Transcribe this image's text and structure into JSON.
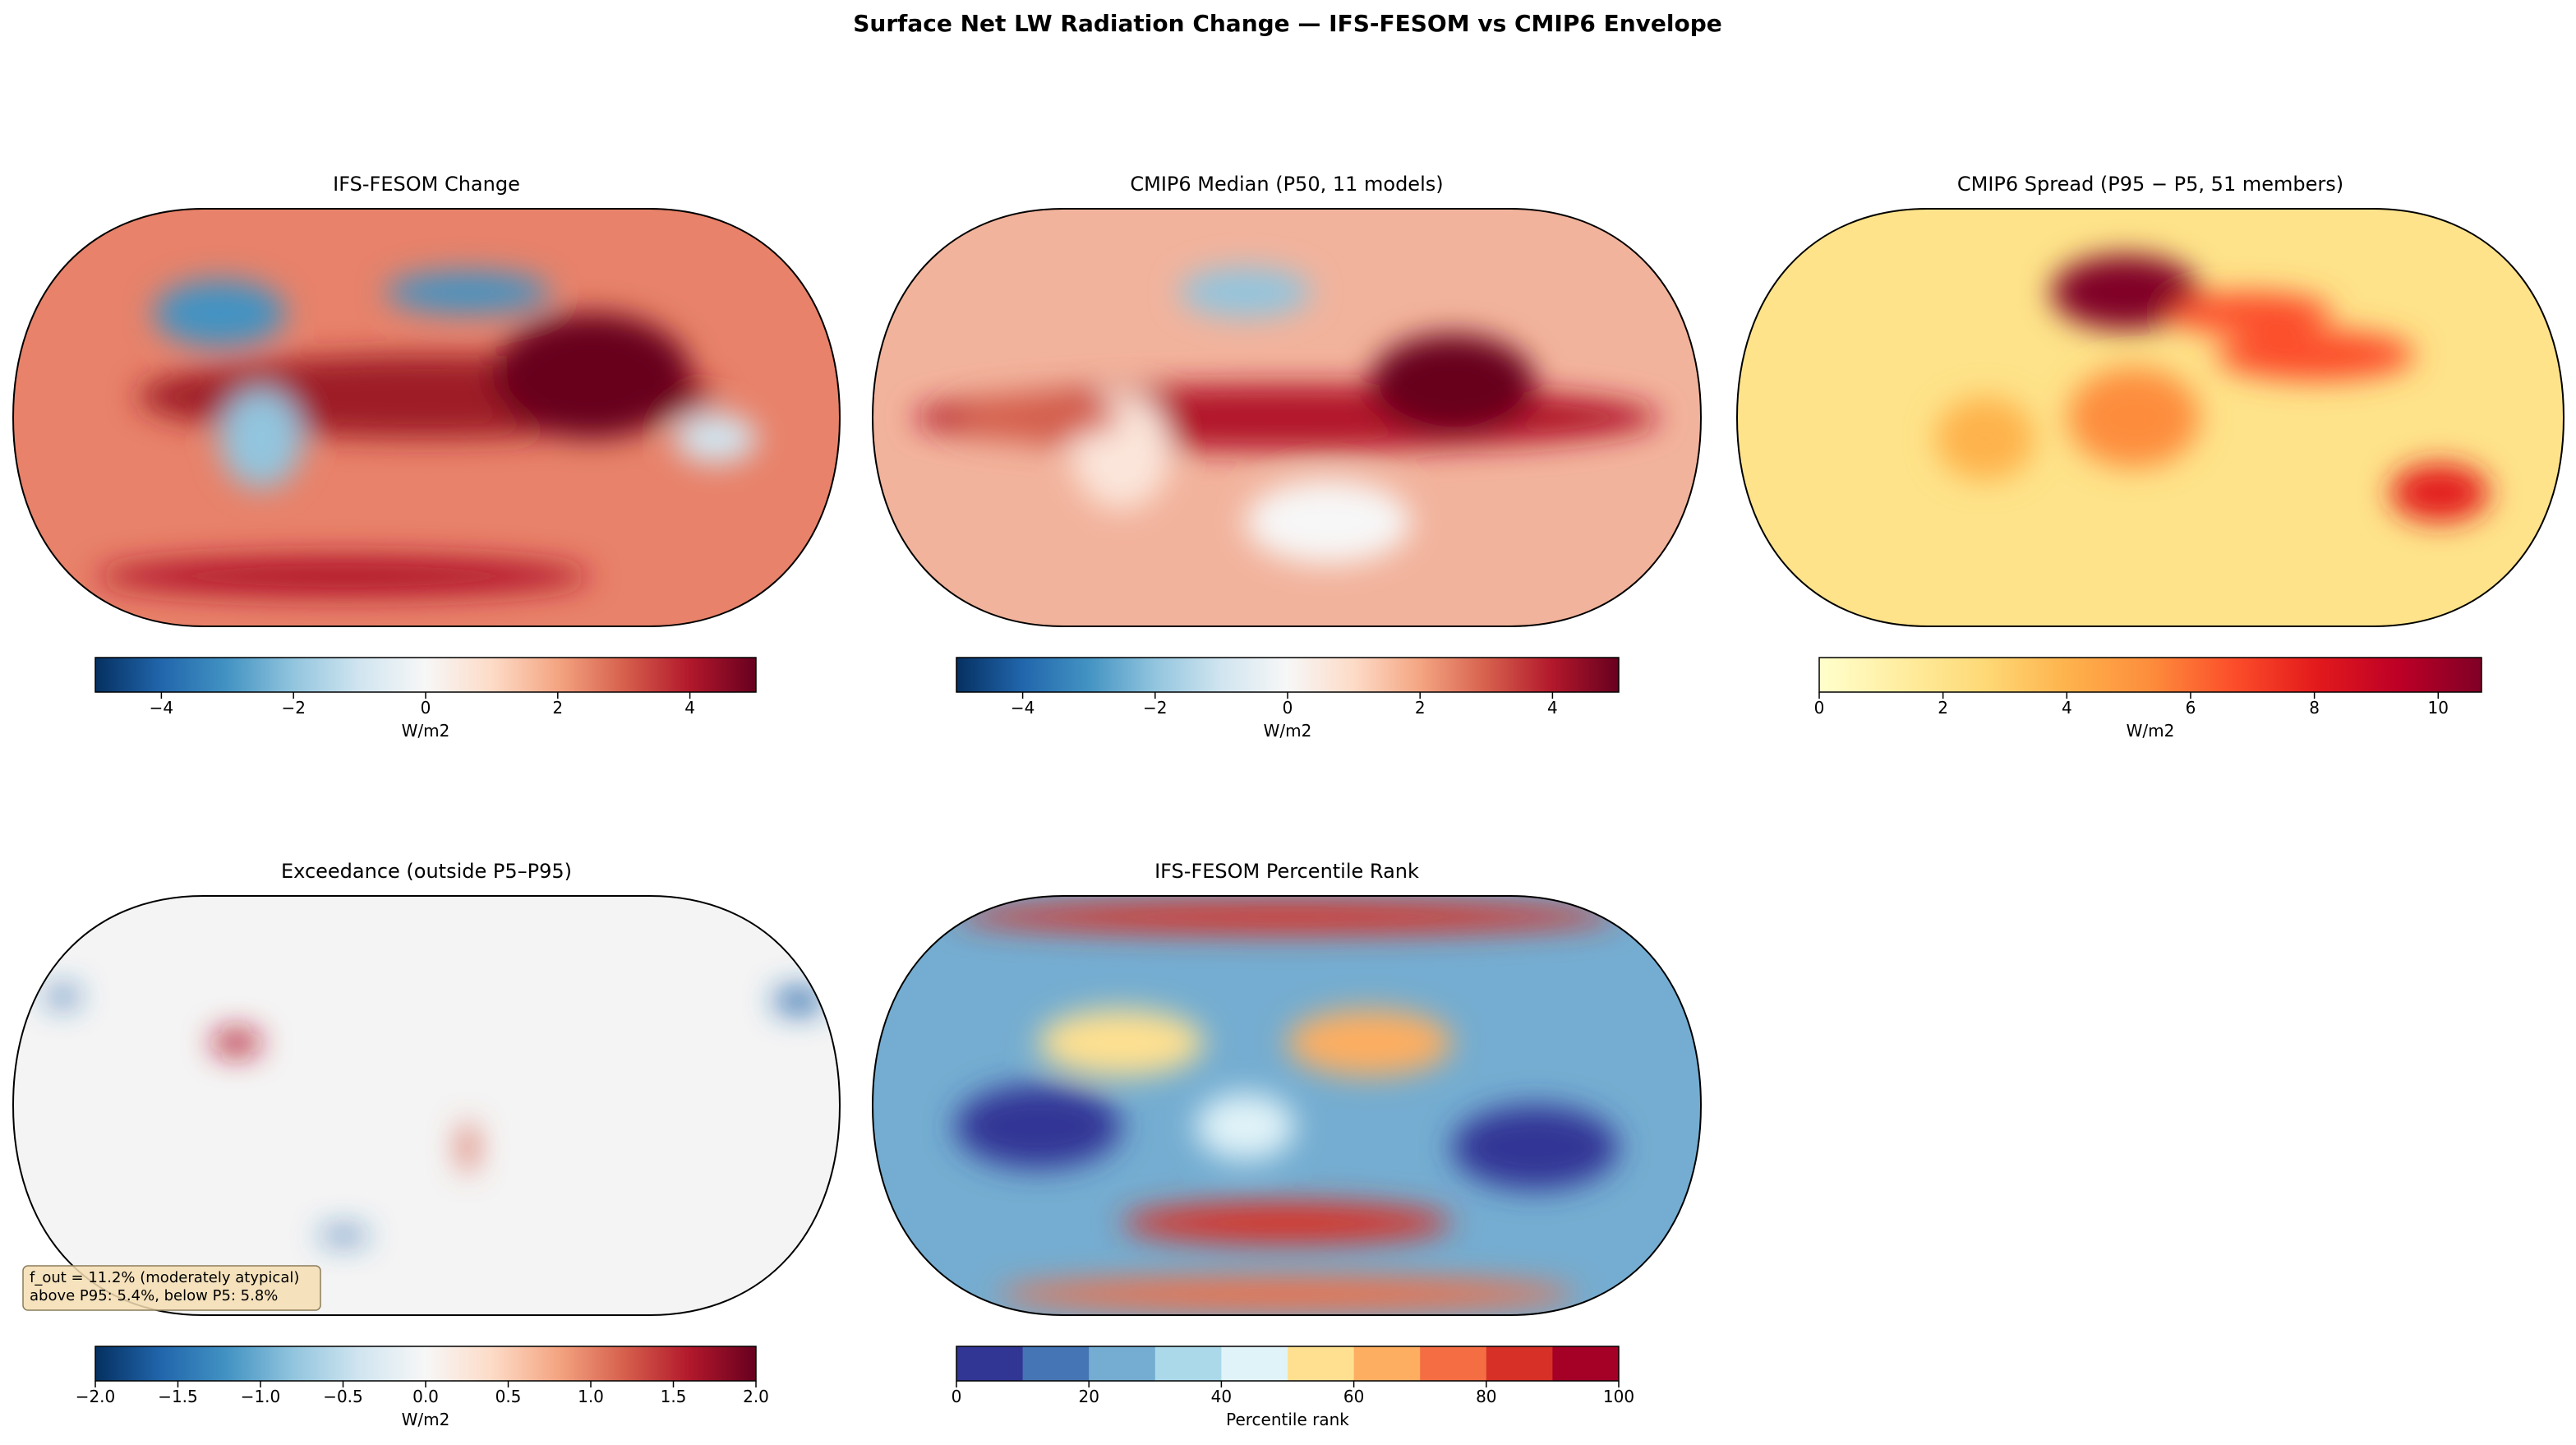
{
  "chart_data": {
    "title": "Surface Net LW Radiation Change — IFS-FESOM vs CMIP6 Envelope",
    "panels": [
      {
        "type": "map",
        "title": "IFS-FESOM Change",
        "colorbar": {
          "label": "W/m2",
          "lim": [
            -5,
            5
          ],
          "ticks": [
            {
              "value": -4,
              "label": "−4"
            },
            {
              "value": -2,
              "label": "−2"
            },
            0,
            2,
            4
          ],
          "colors": [
            "#053061",
            "#2166ac",
            "#4393c3",
            "#92c5de",
            "#d1e5f0",
            "#f7f7f7",
            "#fddbc7",
            "#f4a582",
            "#d6604d",
            "#b2182b",
            "#67001f"
          ]
        }
      },
      {
        "type": "map",
        "title": "CMIP6 Median (P50, 11 models)",
        "colorbar": {
          "label": "W/m2",
          "lim": [
            -5,
            5
          ],
          "ticks": [
            {
              "value": -4,
              "label": "−4"
            },
            {
              "value": -2,
              "label": "−2"
            },
            0,
            2,
            4
          ],
          "colors": [
            "#053061",
            "#2166ac",
            "#4393c3",
            "#92c5de",
            "#d1e5f0",
            "#f7f7f7",
            "#fddbc7",
            "#f4a582",
            "#d6604d",
            "#b2182b",
            "#67001f"
          ]
        }
      },
      {
        "type": "map",
        "title": "CMIP6 Spread (P95 − P5, 51 members)",
        "colorbar": {
          "label": "W/m2",
          "lim": [
            0,
            10.7
          ],
          "ticks": [
            0,
            2,
            4,
            6,
            8,
            10
          ],
          "colors": [
            "#ffffcc",
            "#ffeda0",
            "#fed976",
            "#feb24c",
            "#fd8d3c",
            "#fc4e2a",
            "#e31a1c",
            "#bd0026",
            "#800026"
          ]
        }
      },
      {
        "type": "map",
        "title": "Exceedance (outside P5–P95)",
        "annotation": [
          "f_out = 11.2% (moderately atypical)",
          "above P95: 5.4%, below P5: 5.8%"
        ],
        "colorbar": {
          "label": "W/m2",
          "lim": [
            -2,
            2
          ],
          "ticks": [
            {
              "value": -2,
              "label": "−2.0"
            },
            {
              "value": -1.5,
              "label": "−1.5"
            },
            {
              "value": -1,
              "label": "−1.0"
            },
            {
              "value": -0.5,
              "label": "−0.5"
            },
            {
              "value": 0,
              "label": "0.0"
            },
            0.5,
            {
              "value": 1,
              "label": "1.0"
            },
            1.5,
            {
              "value": 2,
              "label": "2.0"
            }
          ],
          "colors": [
            "#053061",
            "#2166ac",
            "#4393c3",
            "#92c5de",
            "#d1e5f0",
            "#f7f7f7",
            "#fddbc7",
            "#f4a582",
            "#d6604d",
            "#b2182b",
            "#67001f"
          ]
        }
      },
      {
        "type": "map",
        "title": "IFS-FESOM Percentile Rank",
        "colorbar": {
          "label": "Percentile rank",
          "lim": [
            0,
            100
          ],
          "discrete": true,
          "ticks": [
            0,
            20,
            40,
            60,
            80,
            100
          ],
          "colors": [
            "#313695",
            "#4575b4",
            "#74add1",
            "#abd9e9",
            "#e0f3f8",
            "#fee090",
            "#fdae61",
            "#f46d43",
            "#d73027",
            "#a50026"
          ]
        }
      }
    ]
  }
}
